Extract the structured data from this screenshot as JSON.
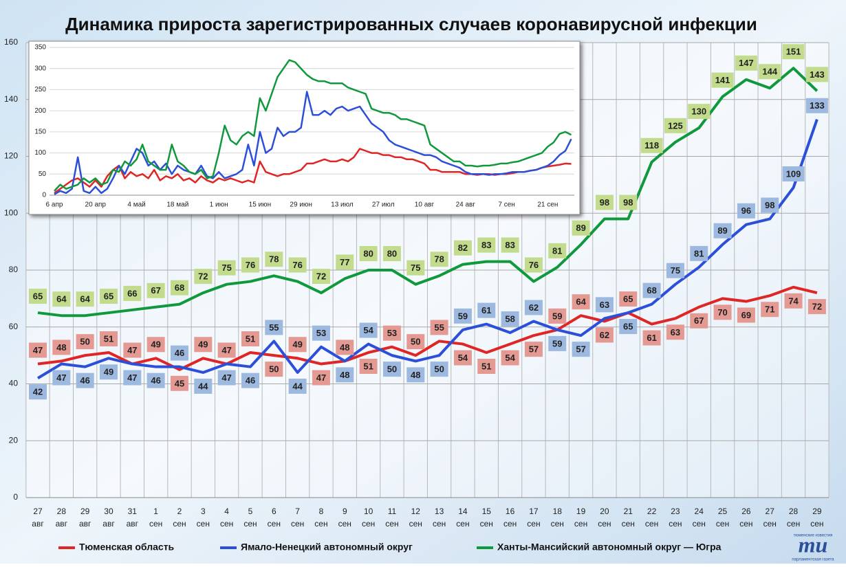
{
  "chart_data": [
    {
      "type": "line",
      "title": "Динамика прироста зарегистрированных случаев коронавирусной инфекции",
      "categories": [
        "27 авг",
        "28 авг",
        "29 авг",
        "30 авг",
        "31 авг",
        "1 сен",
        "2 сен",
        "3 сен",
        "4 сен",
        "5 сен",
        "6 сен",
        "7 сен",
        "8 сен",
        "9 сен",
        "10 сен",
        "11 сен",
        "12 сен",
        "13 сен",
        "14 сен",
        "15 сен",
        "16 сен",
        "17 сен",
        "18 сен",
        "19 сен",
        "20 сен",
        "21 сен",
        "22 сен",
        "23 сен",
        "24 сен",
        "25 сен",
        "26 сен",
        "27 сен",
        "28 сен",
        "29 сен"
      ],
      "series": [
        {
          "name": "Тюменская область",
          "color": "#e02525",
          "label_color": "#e49a92",
          "values": [
            47,
            48,
            50,
            51,
            47,
            49,
            45,
            49,
            47,
            51,
            50,
            49,
            47,
            48,
            51,
            53,
            50,
            55,
            54,
            51,
            54,
            57,
            59,
            64,
            62,
            65,
            61,
            63,
            67,
            70,
            69,
            71,
            74,
            72
          ]
        },
        {
          "name": "Ямало-Ненецкий автономный округ",
          "color": "#2b4fd8",
          "label_color": "#9db9e0",
          "values": [
            42,
            47,
            46,
            49,
            47,
            46,
            46,
            44,
            47,
            46,
            55,
            44,
            53,
            48,
            54,
            50,
            48,
            50,
            59,
            61,
            58,
            62,
            59,
            57,
            63,
            65,
            68,
            75,
            81,
            89,
            96,
            98,
            109,
            133
          ]
        },
        {
          "name": "Ханты-Мансийский автономный округ — Югра",
          "color": "#10983c",
          "label_color": "#c3db8c",
          "values": [
            65,
            64,
            64,
            65,
            66,
            67,
            68,
            72,
            75,
            76,
            78,
            76,
            72,
            77,
            80,
            80,
            75,
            78,
            82,
            83,
            83,
            76,
            81,
            89,
            98,
            98,
            118,
            125,
            130,
            141,
            147,
            144,
            151,
            143
          ]
        }
      ],
      "ylim": [
        0,
        160
      ],
      "yticks": [
        0,
        20,
        40,
        60,
        80,
        100,
        120,
        140,
        160
      ],
      "grid": true,
      "legend": "bottom",
      "data_labels": true
    },
    {
      "type": "line",
      "categories": [
        "6 апр",
        null,
        null,
        null,
        null,
        null,
        null,
        "20 апр",
        null,
        null,
        null,
        null,
        null,
        null,
        "4 май",
        null,
        null,
        null,
        null,
        null,
        null,
        "18 май",
        null,
        null,
        null,
        null,
        null,
        null,
        "1 июн",
        null,
        null,
        null,
        null,
        null,
        null,
        "15 июн",
        null,
        null,
        null,
        null,
        null,
        null,
        "29 июн",
        null,
        null,
        null,
        null,
        null,
        null,
        "13 июл",
        null,
        null,
        null,
        null,
        null,
        null,
        "27 июл",
        null,
        null,
        null,
        null,
        null,
        null,
        "10 авг",
        null,
        null,
        null,
        null,
        null,
        null,
        "24 авг",
        null,
        null,
        null,
        null,
        null,
        null,
        "7 сен",
        null,
        null,
        null,
        null,
        null,
        null,
        "21 сен",
        null,
        null,
        null,
        null
      ],
      "series": [
        {
          "color": "#e02525",
          "values": [
            5,
            15,
            25,
            35,
            40,
            30,
            20,
            35,
            20,
            45,
            60,
            70,
            40,
            55,
            45,
            50,
            40,
            60,
            35,
            45,
            40,
            50,
            35,
            40,
            30,
            45,
            35,
            30,
            40,
            35,
            40,
            35,
            30,
            35,
            30,
            80,
            55,
            50,
            45,
            50,
            50,
            55,
            60,
            75,
            75,
            80,
            85,
            80,
            80,
            85,
            80,
            90,
            110,
            105,
            100,
            100,
            95,
            95,
            90,
            90,
            85,
            85,
            80,
            75,
            60,
            60,
            55,
            55,
            55,
            55,
            50,
            50,
            48,
            50,
            50,
            48,
            50,
            50,
            52,
            55,
            55,
            58,
            60,
            65,
            68,
            70,
            72,
            75,
            74
          ]
        },
        {
          "color": "#2b4fd8",
          "values": [
            2,
            10,
            5,
            15,
            90,
            10,
            5,
            20,
            5,
            15,
            40,
            70,
            50,
            80,
            110,
            100,
            70,
            80,
            60,
            75,
            50,
            70,
            60,
            55,
            50,
            70,
            45,
            40,
            55,
            40,
            45,
            50,
            60,
            120,
            70,
            150,
            100,
            110,
            160,
            140,
            150,
            150,
            160,
            245,
            190,
            190,
            200,
            190,
            205,
            210,
            200,
            205,
            210,
            190,
            170,
            160,
            150,
            130,
            120,
            115,
            110,
            105,
            100,
            95,
            95,
            90,
            80,
            75,
            70,
            65,
            55,
            50,
            50,
            50,
            48,
            50,
            50,
            52,
            55,
            55,
            55,
            58,
            60,
            65,
            70,
            80,
            95,
            105,
            133
          ]
        },
        {
          "color": "#10983c",
          "values": [
            10,
            25,
            15,
            20,
            25,
            40,
            30,
            40,
            25,
            30,
            60,
            55,
            80,
            70,
            85,
            120,
            80,
            70,
            60,
            60,
            120,
            80,
            70,
            55,
            50,
            60,
            40,
            45,
            100,
            165,
            130,
            120,
            140,
            150,
            140,
            230,
            200,
            240,
            280,
            300,
            320,
            315,
            300,
            285,
            275,
            270,
            270,
            265,
            265,
            265,
            255,
            250,
            245,
            240,
            205,
            200,
            195,
            195,
            190,
            180,
            180,
            175,
            170,
            165,
            120,
            110,
            100,
            90,
            80,
            80,
            70,
            70,
            68,
            70,
            70,
            72,
            75,
            75,
            78,
            80,
            85,
            90,
            95,
            100,
            115,
            125,
            145,
            150,
            143
          ]
        }
      ],
      "ylim": [
        0,
        350
      ],
      "yticks": [
        0,
        50,
        100,
        150,
        200,
        250,
        300,
        350
      ],
      "grid": true
    }
  ],
  "logo": {
    "mark": "тu",
    "top": "тюменские известия",
    "bottom": "парламентская газета"
  }
}
